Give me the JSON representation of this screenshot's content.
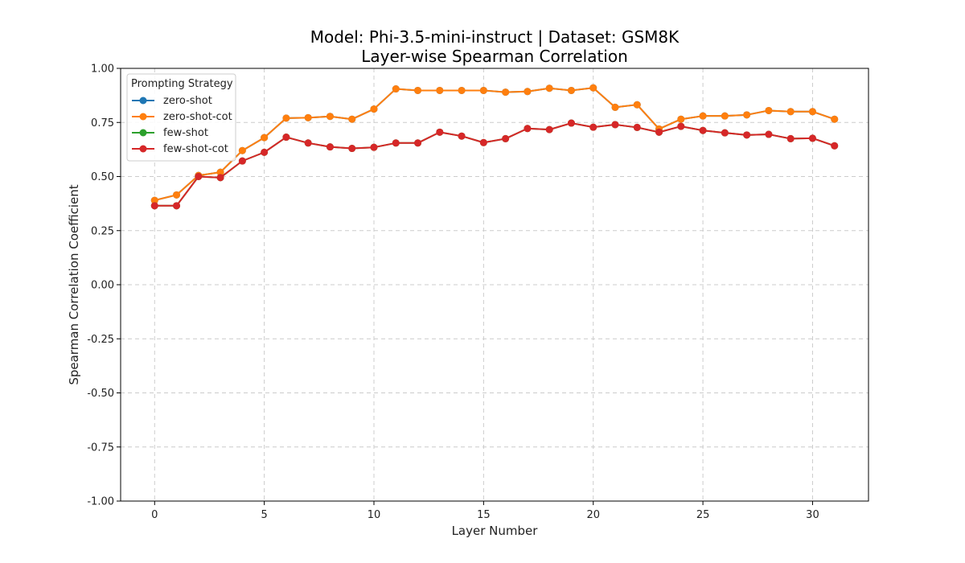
{
  "chart_data": {
    "type": "line",
    "title_line1": "Model: Phi-3.5-mini-instruct | Dataset: GSM8K",
    "title_line2": "Layer-wise Spearman Correlation",
    "xlabel": "Layer Number",
    "ylabel": "Spearman Correlation Coefficient",
    "xlim": [
      -1.55,
      32.55
    ],
    "ylim": [
      -1.0,
      1.0
    ],
    "xticks": [
      0,
      5,
      10,
      15,
      20,
      25,
      30
    ],
    "xtick_labels": [
      "0",
      "5",
      "10",
      "15",
      "20",
      "25",
      "30"
    ],
    "yticks": [
      -1.0,
      -0.75,
      -0.5,
      -0.25,
      0.0,
      0.25,
      0.5,
      0.75,
      1.0
    ],
    "ytick_labels": [
      "-1.00",
      "-0.75",
      "-0.50",
      "-0.25",
      "0.00",
      "0.25",
      "0.50",
      "0.75",
      "1.00"
    ],
    "grid": true,
    "legend": {
      "title": "Prompting Strategy",
      "placement": "top-left"
    },
    "x": [
      0,
      1,
      2,
      3,
      4,
      5,
      6,
      7,
      8,
      9,
      10,
      11,
      12,
      13,
      14,
      15,
      16,
      17,
      18,
      19,
      20,
      21,
      22,
      23,
      24,
      25,
      26,
      27,
      28,
      29,
      30,
      31
    ],
    "series": [
      {
        "name": "zero-shot",
        "color": "#1f77b4",
        "values": [
          0.39,
          0.415,
          0.505,
          0.52,
          0.62,
          0.68,
          0.77,
          0.772,
          0.778,
          0.765,
          0.812,
          0.905,
          0.898,
          0.898,
          0.898,
          0.898,
          0.89,
          0.893,
          0.908,
          0.898,
          0.91,
          0.82,
          0.832,
          0.72,
          0.765,
          0.78,
          0.78,
          0.785,
          0.805,
          0.8,
          0.8,
          0.765
        ]
      },
      {
        "name": "zero-shot-cot",
        "color": "#ff7f0e",
        "values": [
          0.39,
          0.415,
          0.505,
          0.52,
          0.62,
          0.68,
          0.77,
          0.772,
          0.778,
          0.765,
          0.812,
          0.905,
          0.898,
          0.898,
          0.898,
          0.898,
          0.89,
          0.893,
          0.908,
          0.898,
          0.91,
          0.82,
          0.832,
          0.72,
          0.765,
          0.78,
          0.78,
          0.785,
          0.805,
          0.8,
          0.8,
          0.765
        ]
      },
      {
        "name": "few-shot",
        "color": "#2ca02c",
        "values": [
          0.365,
          0.365,
          0.5,
          0.495,
          0.572,
          0.612,
          0.682,
          0.655,
          0.637,
          0.63,
          0.635,
          0.655,
          0.655,
          0.705,
          0.687,
          0.657,
          0.675,
          0.722,
          0.717,
          0.747,
          0.728,
          0.74,
          0.727,
          0.705,
          0.732,
          0.713,
          0.702,
          0.692,
          0.695,
          0.675,
          0.677,
          0.642
        ]
      },
      {
        "name": "few-shot-cot",
        "color": "#d62728",
        "values": [
          0.365,
          0.365,
          0.5,
          0.495,
          0.572,
          0.612,
          0.682,
          0.655,
          0.637,
          0.63,
          0.635,
          0.655,
          0.655,
          0.705,
          0.687,
          0.657,
          0.675,
          0.722,
          0.717,
          0.747,
          0.728,
          0.74,
          0.727,
          0.705,
          0.732,
          0.713,
          0.702,
          0.692,
          0.695,
          0.675,
          0.677,
          0.642
        ]
      }
    ]
  }
}
